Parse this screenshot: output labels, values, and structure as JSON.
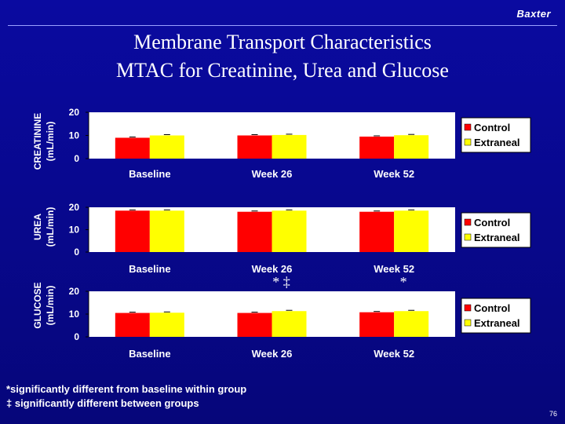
{
  "brand": "Baxter",
  "title_lines": [
    "Membrane Transport Characteristics",
    "MTAC for Creatinine, Urea and Glucose"
  ],
  "footnotes": [
    "*significantly different from baseline within group",
    "‡ significantly different between groups"
  ],
  "page_number": "76",
  "colors": {
    "control": "#ff0000",
    "extraneal": "#ffff00",
    "plot_bg": "#ffffff",
    "background": "#0a0a9c"
  },
  "chart_data": [
    {
      "type": "bar",
      "ylabel_lines": [
        "CREATININE",
        "(mL/min)"
      ],
      "categories": [
        "Baseline",
        "Week 26",
        "Week 52"
      ],
      "yticks": [
        0,
        10,
        20
      ],
      "ylim": [
        0,
        20
      ],
      "series": [
        {
          "name": "Control",
          "values": [
            9,
            10,
            9.5
          ]
        },
        {
          "name": "Extraneal",
          "values": [
            10,
            10.2,
            10.1
          ]
        }
      ],
      "annotations": [
        "",
        "",
        ""
      ],
      "legend": "right"
    },
    {
      "type": "bar",
      "ylabel_lines": [
        "UREA",
        "(mL/min)"
      ],
      "categories": [
        "Baseline",
        "Week 26",
        "Week 52"
      ],
      "yticks": [
        0,
        10,
        20
      ],
      "ylim": [
        0,
        20
      ],
      "series": [
        {
          "name": "Control",
          "values": [
            18.5,
            18,
            18
          ]
        },
        {
          "name": "Extraneal",
          "values": [
            18.5,
            18.5,
            18.5
          ]
        }
      ],
      "annotations": [
        "",
        "",
        ""
      ],
      "legend": "right"
    },
    {
      "type": "bar",
      "ylabel_lines": [
        "GLUCOSE",
        "(mL/min)"
      ],
      "categories": [
        "Baseline",
        "Week 26",
        "Week 52"
      ],
      "yticks": [
        0,
        10,
        20
      ],
      "ylim": [
        0,
        20
      ],
      "series": [
        {
          "name": "Control",
          "values": [
            10.5,
            10.5,
            10.8
          ]
        },
        {
          "name": "Extraneal",
          "values": [
            10.6,
            11.3,
            11.3
          ]
        }
      ],
      "annotations": [
        "",
        "* ‡",
        "*"
      ],
      "legend": "right"
    }
  ]
}
